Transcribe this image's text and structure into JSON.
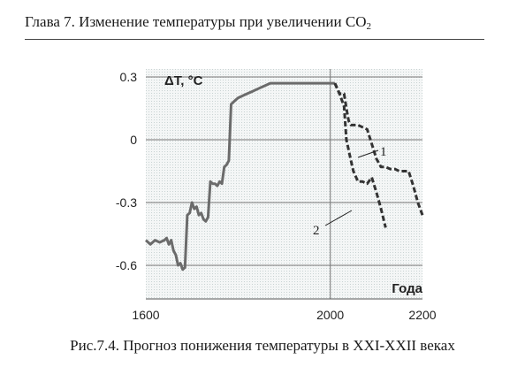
{
  "header": {
    "text": "Глава 7. Изменение температуры при увеличении CO",
    "sub": "2"
  },
  "caption": "Рис.7.4. Прогноз понижения температуры в XXI-XXII веках",
  "colors": {
    "observed": "#6b6b6b",
    "forecast": "#333333",
    "plot_bg": "#e9eeee",
    "grid": "#777777"
  },
  "chart_data": {
    "type": "line",
    "title": "",
    "xlabel": "Года",
    "ylabel": "ΔT, °C",
    "xlim": [
      1600,
      2200
    ],
    "ylim": [
      -0.7,
      0.3
    ],
    "x_ticks": [
      "1600",
      "2000",
      "2200"
    ],
    "y_ticks": [
      "0.3",
      "0",
      "-0.3",
      "-0.6"
    ],
    "grid": true,
    "series": [
      {
        "style": "solid",
        "x": [
          1600,
          1610,
          1620,
          1630,
          1640,
          1645,
          1650,
          1655,
          1660,
          1665,
          1670,
          1675,
          1680,
          1685,
          1690,
          1695,
          1700,
          1705,
          1710,
          1715,
          1720,
          1725,
          1730,
          1735,
          1740,
          1745,
          1750,
          1755,
          1760,
          1765,
          1770,
          1775,
          1780,
          1785,
          1790,
          1795,
          1800,
          1810,
          1820,
          1830,
          1840,
          1850,
          1860,
          1870,
          1880,
          1890,
          1900,
          1910,
          1920,
          1930,
          1940,
          1950,
          1960,
          1970,
          1980,
          1990,
          2000,
          2010
        ],
        "y": [
          -0.48,
          -0.5,
          -0.48,
          -0.49,
          -0.48,
          -0.47,
          -0.5,
          -0.48,
          -0.53,
          -0.55,
          -0.6,
          -0.59,
          -0.62,
          -0.61,
          -0.36,
          -0.35,
          -0.3,
          -0.33,
          -0.32,
          -0.36,
          -0.35,
          -0.38,
          -0.39,
          -0.37,
          -0.2,
          -0.21,
          -0.21,
          -0.22,
          -0.2,
          -0.21,
          -0.13,
          -0.12,
          -0.1,
          0.17,
          0.18,
          0.19,
          0.2,
          0.21,
          0.22,
          0.23,
          0.24,
          0.25,
          0.26,
          0.27,
          0.27,
          0.27,
          0.27,
          0.27,
          0.27,
          0.27,
          0.27,
          0.27,
          0.27,
          0.27,
          0.27,
          0.27,
          0.27,
          0.27
        ]
      },
      {
        "name": "1",
        "style": "dashed",
        "x": [
          2010,
          2020,
          2030,
          2035,
          2040,
          2045,
          2050,
          2060,
          2070,
          2080,
          2090,
          2100,
          2110,
          2120,
          2130,
          2140,
          2150,
          2160,
          2170,
          2180,
          2190,
          2200
        ],
        "y": [
          0.27,
          0.22,
          0.22,
          0.15,
          0.09,
          0.07,
          0.07,
          0.07,
          0.06,
          0.05,
          -0.02,
          -0.09,
          -0.13,
          -0.13,
          -0.14,
          -0.14,
          -0.15,
          -0.15,
          -0.15,
          -0.22,
          -0.3,
          -0.36
        ]
      },
      {
        "name": "2",
        "style": "dashed",
        "x": [
          2010,
          2020,
          2030,
          2035,
          2040,
          2045,
          2050,
          2060,
          2070,
          2080,
          2090,
          2100,
          2110,
          2120
        ],
        "y": [
          0.27,
          0.22,
          0.16,
          0.0,
          -0.05,
          -0.1,
          -0.15,
          -0.2,
          -0.2,
          -0.21,
          -0.18,
          -0.25,
          -0.33,
          -0.42
        ]
      }
    ],
    "annotations": [
      {
        "text": "1",
        "target": "series-1"
      },
      {
        "text": "2",
        "target": "series-2"
      }
    ]
  }
}
